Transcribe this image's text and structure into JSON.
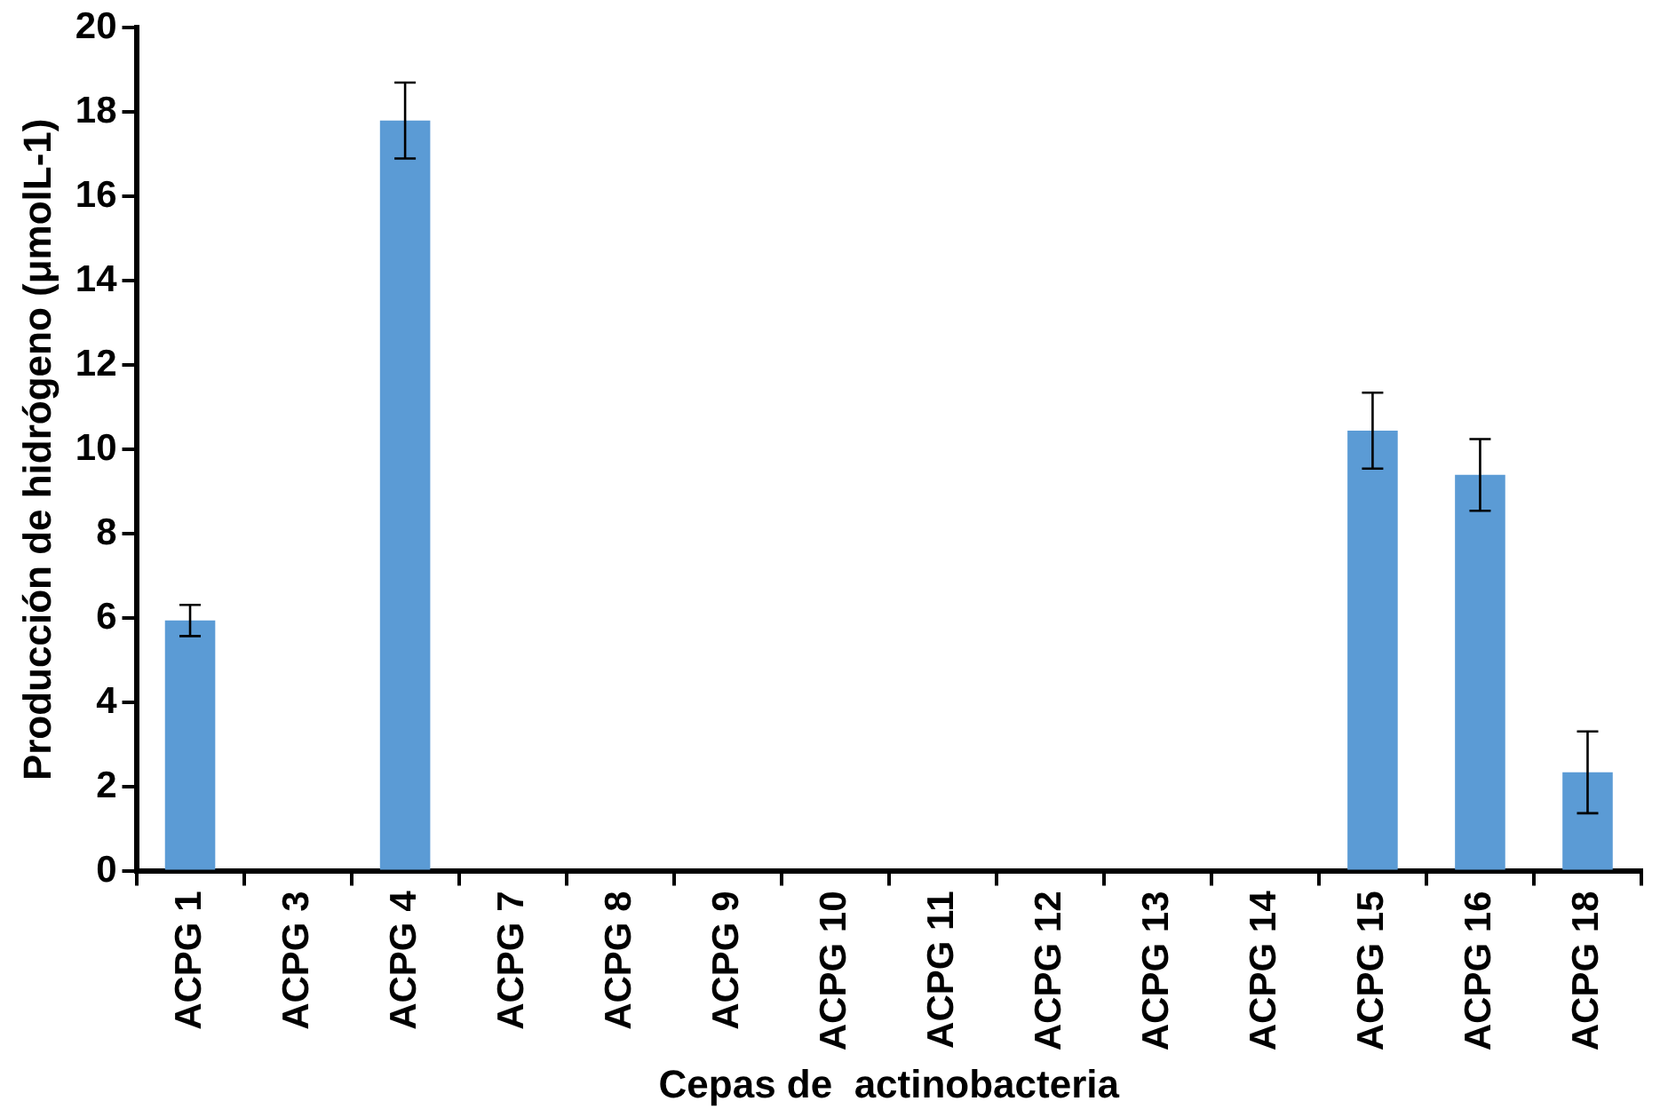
{
  "chart_data": {
    "type": "bar",
    "xlabel": "Cepas de  actinobacteria",
    "ylabel": "Producción de hidrógeno (μmolL-1)",
    "categories": [
      "ACPG 1",
      "ACPG 3",
      "ACPG 4",
      "ACPG 7",
      "ACPG 8",
      "ACPG 9",
      "ACPG 10",
      "ACPG 11",
      "ACPG 12",
      "ACPG 13",
      "ACPG 14",
      "ACPG 15",
      "ACPG 16",
      "ACPG 18"
    ],
    "values": [
      5.95,
      0,
      17.8,
      0,
      0,
      0,
      0,
      0,
      0,
      0,
      0,
      10.45,
      9.4,
      2.35
    ],
    "errors": [
      0.37,
      null,
      0.9,
      null,
      null,
      null,
      null,
      null,
      null,
      null,
      null,
      0.9,
      0.85,
      0.97
    ],
    "color": "#5b9bd5",
    "ylim": [
      0,
      20
    ],
    "yticks": [
      0,
      2,
      4,
      6,
      8,
      10,
      12,
      14,
      16,
      18,
      20
    ],
    "grid": false,
    "legend": false
  }
}
